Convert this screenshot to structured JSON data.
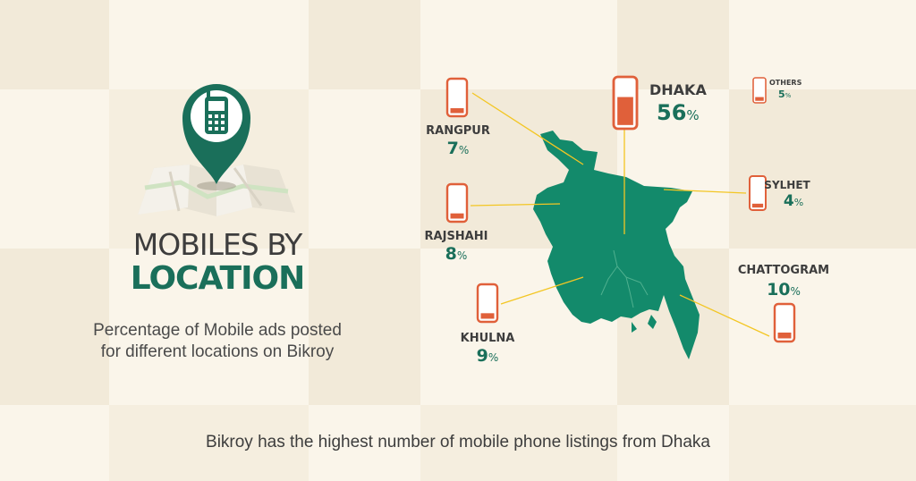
{
  "header": {
    "title_line1": "MOBILES BY",
    "title_line2": "LOCATION",
    "subtitle": "Percentage of Mobile ads posted for different locations on Bikroy"
  },
  "footer": {
    "text": "Bikroy has the highest number of mobile phone listings from Dhaka"
  },
  "colors": {
    "accent_green": "#1a6f5a",
    "map_green": "#138a6b",
    "phone_orange": "#e0603a",
    "leader_line": "#f3c623",
    "background": "#faf5ea",
    "background_alt": "#f2ead9"
  },
  "icons": {
    "header_icon": "map-pin-mobile-icon",
    "region_icon": "mobile-phone-icon"
  },
  "chart_data": {
    "type": "map",
    "unit": "%",
    "regions": [
      {
        "name": "DHAKA",
        "value": 56
      },
      {
        "name": "OTHERS",
        "value": 5
      },
      {
        "name": "RANGPUR",
        "value": 7
      },
      {
        "name": "SYLHET",
        "value": 4
      },
      {
        "name": "RAJSHAHI",
        "value": 8
      },
      {
        "name": "CHATTOGRAM",
        "value": 10
      },
      {
        "name": "KHULNA",
        "value": 9
      }
    ]
  }
}
